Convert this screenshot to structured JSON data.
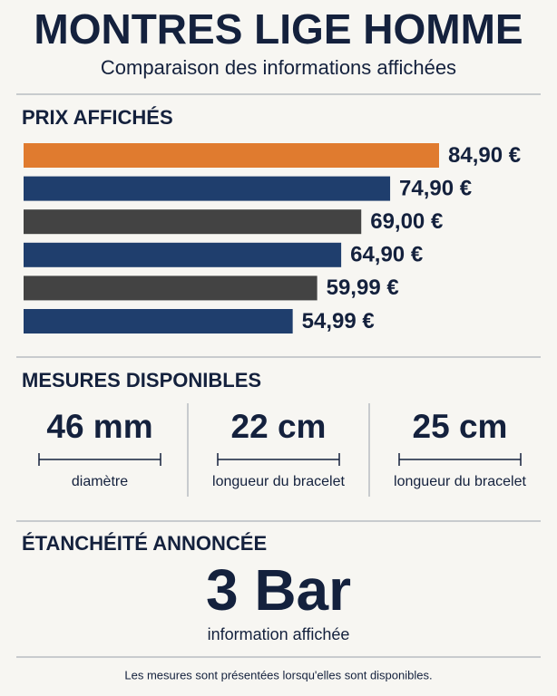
{
  "header": {
    "title": "MONTRES LIGE HOMME",
    "subtitle": "Comparaison des informations affichées"
  },
  "chart_data": {
    "type": "bar",
    "orientation": "horizontal",
    "title": "PRIX AFFICHÉS",
    "values": [
      84.9,
      74.9,
      69.0,
      64.9,
      59.99,
      54.99
    ],
    "value_labels": [
      "84,90 €",
      "74,90 €",
      "69,00 €",
      "64,90 €",
      "59,99 €",
      "54,99 €"
    ],
    "colors": [
      "#e07b2f",
      "#1f3e6d",
      "#434343",
      "#1f3e6d",
      "#434343",
      "#1f3e6d"
    ]
  },
  "measures": {
    "title": "MESURES DISPONIBLES",
    "items": [
      {
        "value": "46 mm",
        "label": "diamètre"
      },
      {
        "value": "22 cm",
        "label": "longueur du bracelet"
      },
      {
        "value": "25 cm",
        "label": "longueur du bracelet"
      }
    ]
  },
  "water_resistance": {
    "title": "ÉTANCHÉITÉ ANNONCÉE",
    "value": "3 Bar",
    "label": "information affichée"
  },
  "footnote": "Les mesures sont présentées lorsqu'elles sont disponibles."
}
